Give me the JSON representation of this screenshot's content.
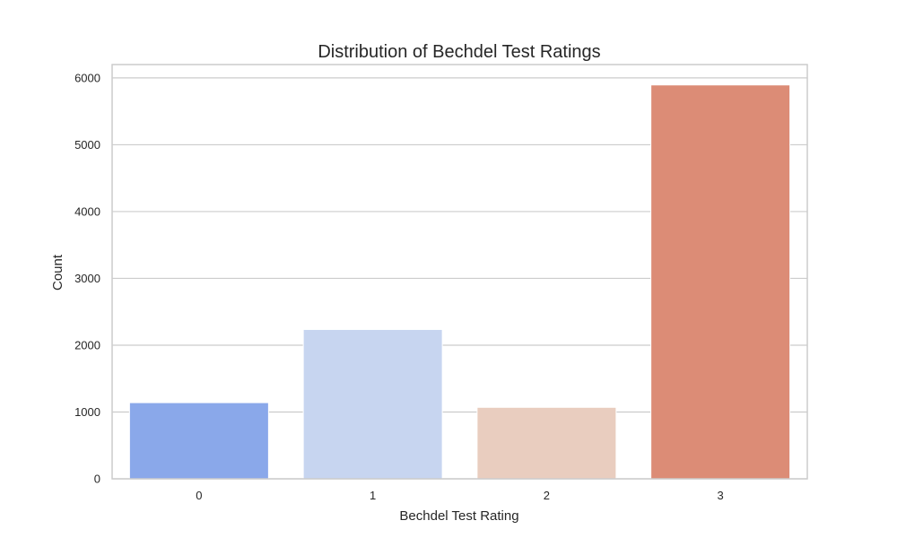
{
  "chart_data": {
    "type": "bar",
    "title": "Distribution of Bechdel Test Ratings",
    "xlabel": "Bechdel Test Rating",
    "ylabel": "Count",
    "categories": [
      "0",
      "1",
      "2",
      "3"
    ],
    "values": [
      1140,
      2235,
      1070,
      5895
    ],
    "ylim": [
      0,
      6200
    ],
    "yticks": [
      0,
      1000,
      2000,
      3000,
      4000,
      5000,
      6000
    ],
    "colors": [
      "#8aa8ea",
      "#c7d5f0",
      "#e9cdbf",
      "#dc8c76"
    ],
    "grid": true,
    "legend": "none"
  }
}
